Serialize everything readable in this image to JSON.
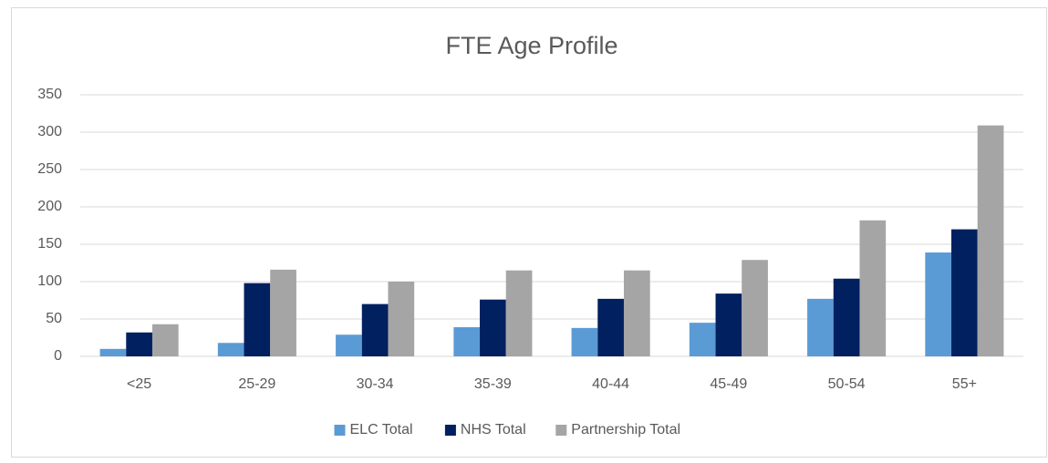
{
  "chart_data": {
    "type": "bar",
    "title": "FTE Age Profile",
    "categories": [
      "<25",
      "25-29",
      "30-34",
      "35-39",
      "40-44",
      "45-49",
      "50-54",
      "55+"
    ],
    "series": [
      {
        "name": "ELC Total",
        "color": "#5b9bd5",
        "values": [
          10,
          18,
          29,
          39,
          38,
          45,
          77,
          139
        ]
      },
      {
        "name": "NHS Total",
        "color": "#002060",
        "values": [
          32,
          98,
          70,
          76,
          77,
          84,
          104,
          170
        ]
      },
      {
        "name": "Partnership Total",
        "color": "#a5a5a5",
        "values": [
          43,
          116,
          100,
          115,
          115,
          129,
          182,
          309
        ]
      }
    ],
    "ylim": [
      0,
      350
    ],
    "yticks": [
      0,
      50,
      100,
      150,
      200,
      250,
      300,
      350
    ],
    "grid": true,
    "legend": "bottom"
  }
}
